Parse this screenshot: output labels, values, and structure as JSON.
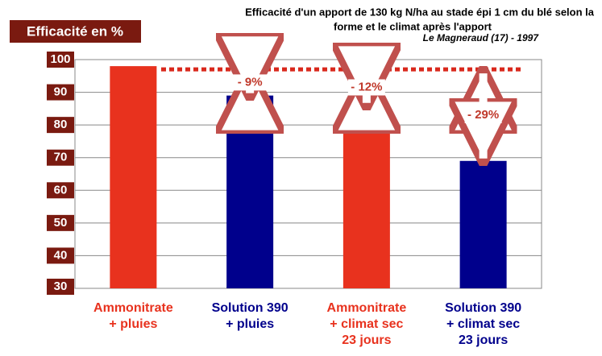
{
  "chart_data": {
    "type": "bar",
    "title": [
      "Efficacité d'un apport de 130 kg N/ha au stade épi 1 cm du blé selon la",
      "forme et le climat après l'apport"
    ],
    "subtitle": "Le Magneraud (17) - 1997",
    "y_label": "Efficacité en %",
    "categories": [
      [
        "Ammonitrate",
        "+ pluies"
      ],
      [
        "Solution 390",
        "+ pluies"
      ],
      [
        "Ammonitrate",
        "+ climat sec",
        "23 jours"
      ],
      [
        "Solution 390",
        "+ climat sec",
        "23 jours"
      ]
    ],
    "values": [
      98,
      89,
      86,
      69
    ],
    "colors": [
      "#e8321e",
      "#00008c",
      "#e8321e",
      "#00008c"
    ],
    "reference_line": 97,
    "annotations": [
      "- 9%",
      "- 12%",
      "- 29%"
    ],
    "ylim": [
      30,
      100
    ],
    "yticks": [
      30,
      40,
      50,
      60,
      70,
      80,
      90,
      100
    ],
    "grid": true
  }
}
